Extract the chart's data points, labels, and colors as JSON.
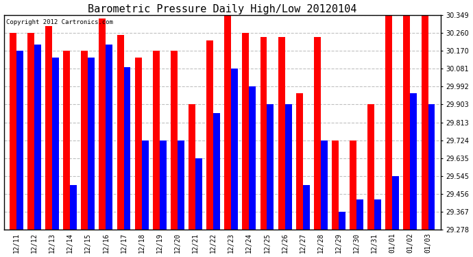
{
  "title": "Barometric Pressure Daily High/Low 20120104",
  "copyright": "Copyright 2012 Cartronics.com",
  "categories": [
    "12/11",
    "12/12",
    "12/13",
    "12/14",
    "12/15",
    "12/16",
    "12/17",
    "12/18",
    "12/19",
    "12/20",
    "12/21",
    "12/22",
    "12/23",
    "12/24",
    "12/25",
    "12/26",
    "12/27",
    "12/28",
    "12/29",
    "12/30",
    "12/31",
    "01/01",
    "01/02",
    "01/03"
  ],
  "highs": [
    30.26,
    30.26,
    30.295,
    30.17,
    30.17,
    30.33,
    30.25,
    30.135,
    30.17,
    30.17,
    29.903,
    30.22,
    30.349,
    30.26,
    30.24,
    30.24,
    29.96,
    30.24,
    29.724,
    29.724,
    29.903,
    30.349,
    30.349,
    30.349
  ],
  "lows": [
    30.17,
    30.2,
    30.135,
    29.5,
    30.135,
    30.2,
    30.09,
    29.724,
    29.724,
    29.724,
    29.635,
    29.86,
    30.081,
    29.992,
    29.903,
    29.903,
    29.5,
    29.724,
    29.367,
    29.43,
    29.43,
    29.545,
    29.96,
    29.903
  ],
  "ymin": 29.278,
  "ymax": 30.349,
  "yticks": [
    29.278,
    29.367,
    29.456,
    29.545,
    29.635,
    29.724,
    29.813,
    29.903,
    29.992,
    30.081,
    30.17,
    30.26,
    30.349
  ],
  "bar_width": 0.38,
  "high_color": "#ff0000",
  "low_color": "#0000ff",
  "bg_color": "#ffffff",
  "grid_color": "#c0c0c0",
  "title_fontsize": 11,
  "tick_fontsize": 7,
  "copyright_fontsize": 6.5
}
